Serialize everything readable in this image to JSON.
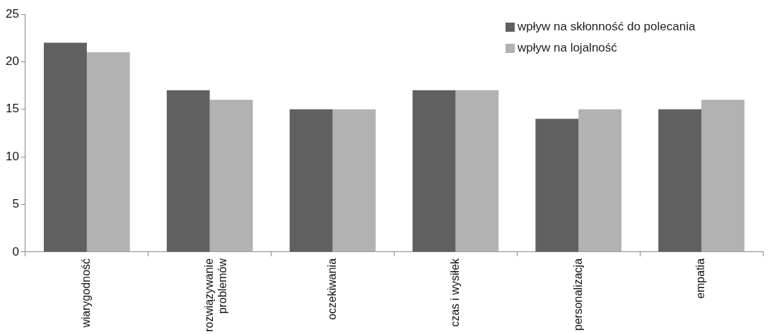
{
  "chart_data": {
    "type": "bar",
    "categories": [
      "wiarygodność",
      "rozwiązywanie problemów",
      "oczekiwania",
      "czas i wysiłek",
      "personalizacja",
      "empatia"
    ],
    "series": [
      {
        "name": "wpływ na skłonność do polecania",
        "color": "#606060",
        "values": [
          22,
          17,
          15,
          17,
          14,
          15
        ]
      },
      {
        "name": "wpływ na lojalność",
        "color": "#b2b2b2",
        "values": [
          21,
          16,
          15,
          17,
          15,
          16
        ]
      }
    ],
    "ylim": [
      0,
      25
    ],
    "yticks": [
      0,
      5,
      10,
      15,
      20,
      25
    ],
    "grid": false,
    "legend": "top right"
  }
}
